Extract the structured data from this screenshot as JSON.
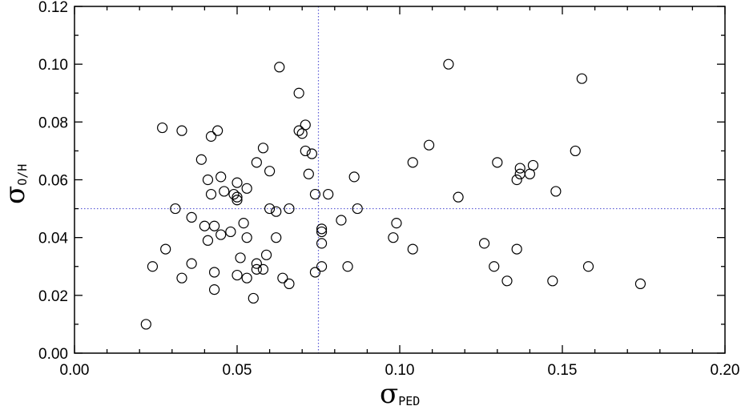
{
  "chart_data": {
    "type": "scatter",
    "title": "",
    "xlabel": {
      "symbol": "σ",
      "subscript": "PED"
    },
    "ylabel": {
      "symbol": "σ",
      "subscript": "O/H"
    },
    "xlim": [
      0.0,
      0.2
    ],
    "ylim": [
      0.0,
      0.12
    ],
    "x_ticks": [
      "0.00",
      "0.05",
      "0.10",
      "0.15",
      "0.20"
    ],
    "y_ticks": [
      "0.00",
      "0.02",
      "0.04",
      "0.06",
      "0.08",
      "0.10",
      "0.12"
    ],
    "grid": false,
    "reference_lines": {
      "x": 0.075,
      "y": 0.05,
      "color": "#5b5bd6",
      "style": "dotted"
    },
    "marker": {
      "shape": "open-circle",
      "color": "#000000"
    },
    "points": [
      [
        0.022,
        0.01
      ],
      [
        0.024,
        0.03
      ],
      [
        0.027,
        0.078
      ],
      [
        0.028,
        0.036
      ],
      [
        0.031,
        0.05
      ],
      [
        0.033,
        0.026
      ],
      [
        0.033,
        0.077
      ],
      [
        0.036,
        0.047
      ],
      [
        0.036,
        0.031
      ],
      [
        0.039,
        0.067
      ],
      [
        0.04,
        0.044
      ],
      [
        0.041,
        0.039
      ],
      [
        0.041,
        0.06
      ],
      [
        0.042,
        0.075
      ],
      [
        0.042,
        0.055
      ],
      [
        0.043,
        0.022
      ],
      [
        0.043,
        0.028
      ],
      [
        0.043,
        0.044
      ],
      [
        0.044,
        0.077
      ],
      [
        0.045,
        0.061
      ],
      [
        0.045,
        0.041
      ],
      [
        0.046,
        0.056
      ],
      [
        0.048,
        0.042
      ],
      [
        0.049,
        0.055
      ],
      [
        0.05,
        0.059
      ],
      [
        0.05,
        0.054
      ],
      [
        0.05,
        0.053
      ],
      [
        0.05,
        0.027
      ],
      [
        0.051,
        0.033
      ],
      [
        0.052,
        0.045
      ],
      [
        0.053,
        0.057
      ],
      [
        0.053,
        0.04
      ],
      [
        0.053,
        0.026
      ],
      [
        0.055,
        0.019
      ],
      [
        0.056,
        0.031
      ],
      [
        0.056,
        0.029
      ],
      [
        0.056,
        0.066
      ],
      [
        0.058,
        0.071
      ],
      [
        0.058,
        0.029
      ],
      [
        0.059,
        0.034
      ],
      [
        0.06,
        0.05
      ],
      [
        0.06,
        0.063
      ],
      [
        0.062,
        0.049
      ],
      [
        0.062,
        0.04
      ],
      [
        0.063,
        0.099
      ],
      [
        0.064,
        0.026
      ],
      [
        0.066,
        0.05
      ],
      [
        0.066,
        0.024
      ],
      [
        0.069,
        0.077
      ],
      [
        0.069,
        0.09
      ],
      [
        0.07,
        0.076
      ],
      [
        0.071,
        0.079
      ],
      [
        0.071,
        0.07
      ],
      [
        0.072,
        0.062
      ],
      [
        0.073,
        0.069
      ],
      [
        0.074,
        0.055
      ],
      [
        0.074,
        0.028
      ],
      [
        0.076,
        0.038
      ],
      [
        0.076,
        0.043
      ],
      [
        0.076,
        0.042
      ],
      [
        0.076,
        0.03
      ],
      [
        0.078,
        0.055
      ],
      [
        0.082,
        0.046
      ],
      [
        0.084,
        0.03
      ],
      [
        0.086,
        0.061
      ],
      [
        0.087,
        0.05
      ],
      [
        0.098,
        0.04
      ],
      [
        0.099,
        0.045
      ],
      [
        0.104,
        0.066
      ],
      [
        0.104,
        0.036
      ],
      [
        0.109,
        0.072
      ],
      [
        0.115,
        0.1
      ],
      [
        0.118,
        0.054
      ],
      [
        0.126,
        0.038
      ],
      [
        0.129,
        0.03
      ],
      [
        0.13,
        0.066
      ],
      [
        0.133,
        0.025
      ],
      [
        0.136,
        0.06
      ],
      [
        0.136,
        0.036
      ],
      [
        0.137,
        0.062
      ],
      [
        0.137,
        0.064
      ],
      [
        0.14,
        0.062
      ],
      [
        0.141,
        0.065
      ],
      [
        0.147,
        0.025
      ],
      [
        0.148,
        0.056
      ],
      [
        0.154,
        0.07
      ],
      [
        0.156,
        0.095
      ],
      [
        0.158,
        0.03
      ],
      [
        0.174,
        0.024
      ]
    ]
  }
}
